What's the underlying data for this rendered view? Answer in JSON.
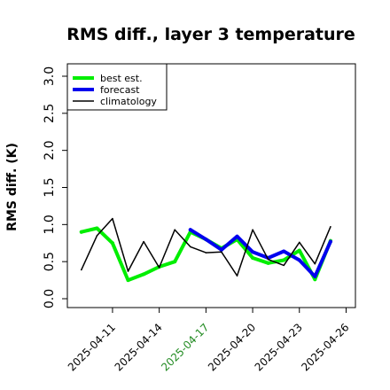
{
  "chart_data": {
    "type": "line",
    "title": "RMS diff., layer 3 temperature",
    "xlabel": "",
    "ylabel": "RMS diff. (K)",
    "ylim": [
      0.0,
      3.0
    ],
    "yticks": [
      "0.0",
      "0.5",
      "1.0",
      "1.5",
      "2.0",
      "2.5",
      "3.0"
    ],
    "xlim": [
      -0.9,
      17.6
    ],
    "xticks": [
      {
        "index": 2,
        "label": "2025-04-11",
        "color": "#000000"
      },
      {
        "index": 5,
        "label": "2025-04-14",
        "color": "#000000"
      },
      {
        "index": 8,
        "label": "2025-04-17",
        "color": "#228b22"
      },
      {
        "index": 11,
        "label": "2025-04-20",
        "color": "#000000"
      },
      {
        "index": 14,
        "label": "2025-04-23",
        "color": "#000000"
      },
      {
        "index": 17,
        "label": "2025-04-26",
        "color": "#000000"
      }
    ],
    "legend_position": "top-left",
    "grid": false,
    "series": [
      {
        "name": "best est.",
        "color": "#00ee00",
        "width": 4,
        "values": [
          0.9,
          0.95,
          0.75,
          0.25,
          0.33,
          0.43,
          0.5,
          0.9,
          0.8,
          0.68,
          0.8,
          0.55,
          0.48,
          0.52,
          0.65,
          0.26,
          0.78
        ]
      },
      {
        "name": "forecast",
        "color": "#0000ee",
        "width": 4,
        "values": [
          null,
          null,
          null,
          null,
          null,
          null,
          null,
          0.93,
          0.8,
          0.66,
          0.84,
          0.63,
          0.55,
          0.64,
          0.52,
          0.3,
          0.77
        ]
      },
      {
        "name": "climatology",
        "color": "#000000",
        "width": 1.5,
        "values": [
          0.39,
          0.85,
          1.08,
          0.37,
          0.77,
          0.42,
          0.93,
          0.7,
          0.62,
          0.63,
          0.31,
          0.93,
          0.53,
          0.45,
          0.76,
          0.47,
          0.97
        ]
      }
    ]
  }
}
